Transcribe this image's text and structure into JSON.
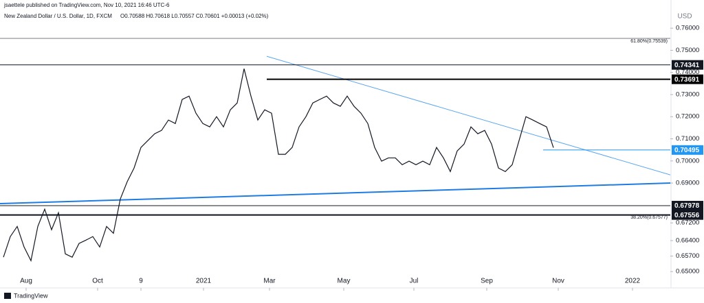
{
  "header": {
    "publisher": "jsaettele published on TradingView.com, Nov 10, 2021 16:46 UTC-6",
    "symbol": "New Zealand Dollar / U.S. Dollar, 1D, FXCM",
    "ohlc": "O0.70588 H0.70618 L0.70557 C0.70601 +0.00013 (+0.02%)"
  },
  "footer": "TradingView",
  "chart_data": {
    "type": "line",
    "color": "#131722",
    "y_unit": "USD",
    "values": [
      0.6565,
      0.6658,
      0.6704,
      0.6611,
      0.6549,
      0.6704,
      0.6782,
      0.6689,
      0.6766,
      0.658,
      0.6565,
      0.6627,
      0.6642,
      0.6658,
      0.6611,
      0.6704,
      0.6673,
      0.6828,
      0.6906,
      0.6968,
      0.7061,
      0.7092,
      0.7123,
      0.7138,
      0.7185,
      0.7169,
      0.7278,
      0.7293,
      0.7216,
      0.7169,
      0.7154,
      0.72,
      0.7154,
      0.7231,
      0.7262,
      0.7417,
      0.7293,
      0.7185,
      0.7231,
      0.7216,
      0.703,
      0.703,
      0.7061,
      0.7154,
      0.72,
      0.7262,
      0.7278,
      0.7293,
      0.7262,
      0.7247,
      0.7293,
      0.7247,
      0.7216,
      0.7169,
      0.7061,
      0.6999,
      0.7014,
      0.7014,
      0.6983,
      0.6999,
      0.6983,
      0.6999,
      0.6983,
      0.7061,
      0.7014,
      0.6952,
      0.7045,
      0.7076,
      0.7154,
      0.7123,
      0.7138,
      0.7076,
      0.6968,
      0.6952,
      0.6983,
      0.7092,
      0.72,
      0.7185,
      0.7169,
      0.7154,
      0.706
    ],
    "xlim": [
      -0.5,
      97
    ],
    "xticks": [
      {
        "value": 3.3,
        "label": "Aug"
      },
      {
        "value": 13.7,
        "label": "Oct"
      },
      {
        "value": 20,
        "label": "9"
      },
      {
        "value": 29.1,
        "label": "2021"
      },
      {
        "value": 38.7,
        "label": "Mar"
      },
      {
        "value": 49.5,
        "label": "May"
      },
      {
        "value": 59.7,
        "label": "Jul"
      },
      {
        "value": 70.3,
        "label": "Sep"
      },
      {
        "value": 80.7,
        "label": "Nov"
      },
      {
        "value": 91.5,
        "label": "2022"
      }
    ],
    "ylim": [
      0.6488,
      0.7681
    ],
    "yticks": [
      {
        "value": 0.76,
        "label": "0.76000"
      },
      {
        "value": 0.75,
        "label": "0.75000"
      },
      {
        "value": 0.74,
        "label": "0.74000"
      },
      {
        "value": 0.73,
        "label": "0.73000"
      },
      {
        "value": 0.72,
        "label": "0.72000"
      },
      {
        "value": 0.71,
        "label": "0.71000"
      },
      {
        "value": 0.7,
        "label": "0.70000"
      },
      {
        "value": 0.69,
        "label": "0.69000"
      },
      {
        "value": 0.672,
        "label": "0.67200"
      },
      {
        "value": 0.664,
        "label": "0.66400"
      },
      {
        "value": 0.657,
        "label": "0.65700"
      },
      {
        "value": 0.65,
        "label": "0.65000"
      }
    ],
    "fib_levels": [
      {
        "value": 0.75539,
        "label": "61.80%(0.75539)"
      },
      {
        "value": 0.67577,
        "label": "38.20%(0.67577)"
      }
    ],
    "levels": [
      {
        "value": 0.74341,
        "color": "#131722",
        "width": 1,
        "box": "#131722"
      },
      {
        "value": 0.73691,
        "start": 38.3,
        "color": "#000000",
        "width": 2,
        "box": "#000000"
      },
      {
        "value": 0.70495,
        "start": 78.5,
        "color": "#2196f3",
        "width": 1,
        "box": "#2196f3"
      },
      {
        "value": 0.67978,
        "color": "#131722",
        "width": 1,
        "box": "#131722"
      },
      {
        "value": 0.67556,
        "color": "#131722",
        "width": 2,
        "box": "#131722"
      }
    ],
    "trendlines": [
      {
        "x": [
          38.3,
          97
        ],
        "y": [
          0.7473,
          0.6937
        ],
        "color": "#5aa6f0",
        "width": 1
      },
      {
        "x": [
          -0.5,
          97
        ],
        "y": [
          0.6807,
          0.69
        ],
        "color": "#1e7be0",
        "width": 2
      }
    ]
  }
}
